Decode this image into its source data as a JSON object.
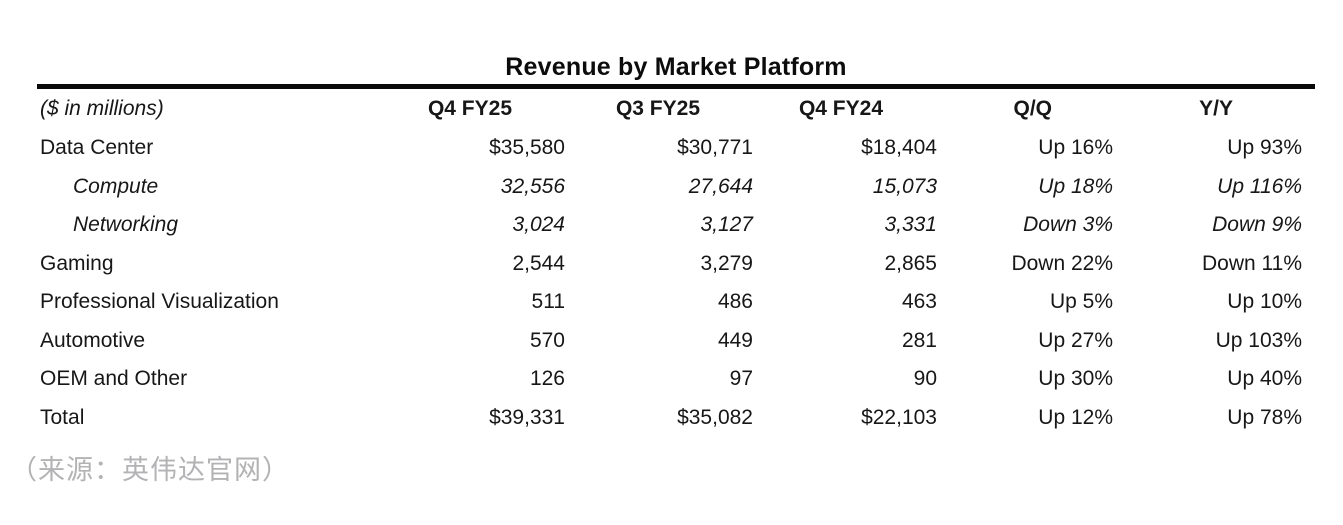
{
  "chart_data": {
    "type": "table",
    "title": "Revenue by Market Platform",
    "unit_label": "($ in millions)",
    "columns": [
      "Q4 FY25",
      "Q3 FY25",
      "Q4 FY24",
      "Q/Q",
      "Y/Y"
    ],
    "rows": [
      {
        "label": "Data Center",
        "variant": "normal",
        "values": [
          "$35,580",
          "$30,771",
          "$18,404",
          "Up 16%",
          "Up 93%"
        ]
      },
      {
        "label": "Compute",
        "variant": "sub",
        "values": [
          "32,556",
          "27,644",
          "15,073",
          "Up 18%",
          "Up 116%"
        ]
      },
      {
        "label": "Networking",
        "variant": "sub",
        "values": [
          "3,024",
          "3,127",
          "3,331",
          "Down 3%",
          "Down 9%"
        ]
      },
      {
        "label": "Gaming",
        "variant": "normal",
        "values": [
          "2,544",
          "3,279",
          "2,865",
          "Down 22%",
          "Down 11%"
        ]
      },
      {
        "label": "Professional Visualization",
        "variant": "normal",
        "values": [
          "511",
          "486",
          "463",
          "Up 5%",
          "Up 10%"
        ]
      },
      {
        "label": "Automotive",
        "variant": "normal",
        "values": [
          "570",
          "449",
          "281",
          "Up 27%",
          "Up 103%"
        ]
      },
      {
        "label": "OEM and Other",
        "variant": "normal",
        "values": [
          "126",
          "97",
          "90",
          "Up 30%",
          "Up 40%"
        ]
      },
      {
        "label": "Total",
        "variant": "normal",
        "values": [
          "$39,331",
          "$35,082",
          "$22,103",
          "Up 12%",
          "Up 78%"
        ]
      }
    ]
  },
  "footer": {
    "source_note": "（来源：英伟达官网）"
  },
  "colors": {
    "text": "#171717",
    "title": "#0c0c0c",
    "rule": "#0a0a0a",
    "muted": "#b3b3b5",
    "background": "#ffffff"
  }
}
